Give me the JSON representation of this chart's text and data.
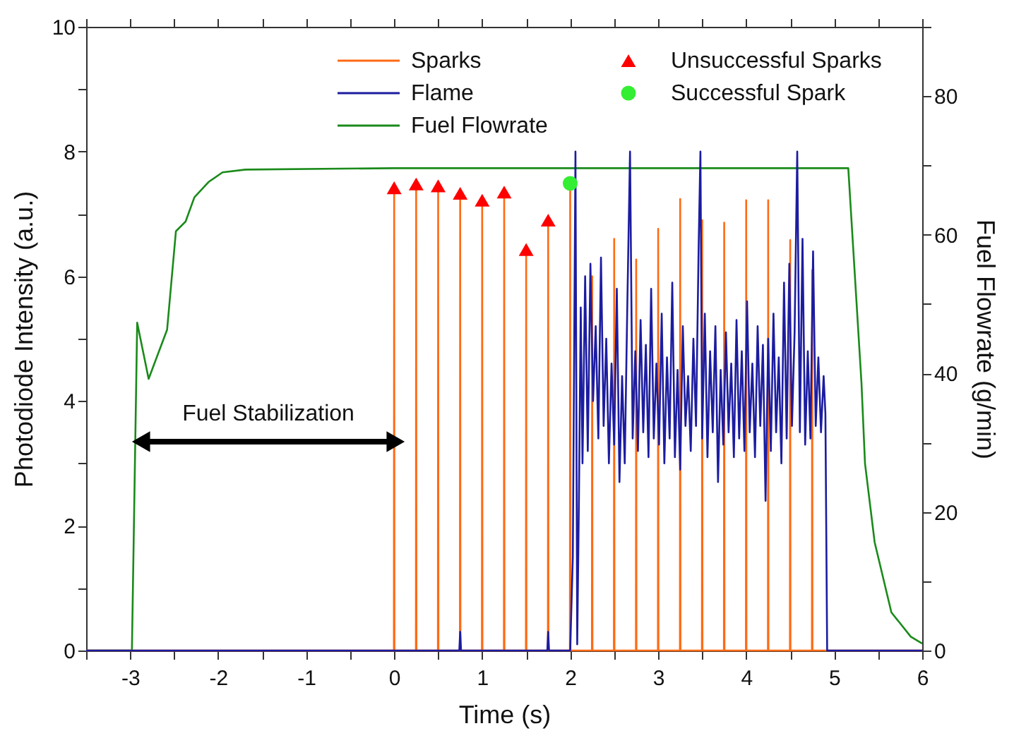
{
  "chart_data": {
    "type": "line",
    "xlabel": "Time (s)",
    "ylabel": "Photodiode Intensity (a.u.)",
    "y2label": "Fuel Flowrate (g/min)",
    "xlim": [
      -3.5,
      6
    ],
    "xticks": [
      {
        "value": -3.5,
        "label": null
      },
      -3,
      {
        "value": -2.5,
        "label": null
      },
      -2,
      {
        "value": -1.5,
        "label": null
      },
      -1,
      {
        "value": -0.5,
        "label": null
      },
      0,
      {
        "value": 0.5,
        "label": null
      },
      1,
      {
        "value": 1.5,
        "label": null
      },
      2,
      {
        "value": 2.5,
        "label": null
      },
      3,
      {
        "value": 3.5,
        "label": null
      },
      4,
      {
        "value": 4.5,
        "label": null
      },
      5,
      {
        "value": 5.5,
        "label": null
      },
      6
    ],
    "ylim": [
      0,
      10
    ],
    "yticks": [
      0,
      {
        "value": 1,
        "label": null
      },
      2,
      {
        "value": 3,
        "label": null
      },
      4,
      {
        "value": 5,
        "label": null
      },
      6,
      {
        "value": 7,
        "label": null
      },
      8,
      {
        "value": 9,
        "label": null
      },
      10
    ],
    "y2lim": [
      0,
      90
    ],
    "y2ticks": [
      0,
      {
        "value": 10,
        "label": null
      },
      20,
      {
        "value": 30,
        "label": null
      },
      40,
      {
        "value": 50,
        "label": null
      },
      60,
      {
        "value": 70,
        "label": null
      },
      80,
      {
        "value": 90,
        "label": null
      }
    ],
    "legend": "top",
    "grid": false,
    "annotations": [
      "Fuel Stabilization"
    ],
    "series": [
      {
        "name": "Sparks",
        "color": "#ff6a14",
        "x": [
          -3.5,
          -0.003,
          0,
          0.003,
          0.247,
          0.25,
          0.253,
          0.497,
          0.5,
          0.503,
          0.747,
          0.75,
          0.753,
          0.997,
          1.0,
          1.003,
          1.247,
          1.25,
          1.253,
          1.497,
          1.5,
          1.503,
          1.747,
          1.75,
          1.753,
          1.997,
          2.0,
          2.003,
          2.247,
          2.25,
          2.253,
          2.497,
          2.5,
          2.503,
          2.747,
          2.75,
          2.753,
          2.997,
          3.0,
          3.003,
          3.247,
          3.25,
          3.253,
          3.497,
          3.5,
          3.503,
          3.747,
          3.75,
          3.753,
          3.997,
          4.0,
          4.003,
          4.247,
          4.25,
          4.253,
          4.497,
          4.5,
          4.503,
          4.747,
          4.75,
          4.753,
          6
        ],
        "values": [
          0,
          0,
          7.42,
          0,
          0,
          7.48,
          0,
          0,
          7.45,
          0,
          0,
          7.33,
          0,
          0,
          7.22,
          0,
          0,
          7.35,
          0,
          0,
          6.43,
          0,
          0,
          6.9,
          0,
          0,
          7.49,
          0,
          0,
          6.0,
          0,
          0,
          6.6,
          0,
          0,
          6.27,
          0,
          0,
          6.76,
          0,
          0,
          7.24,
          0,
          0,
          6.9,
          0,
          0,
          6.86,
          0,
          0,
          7.22,
          0,
          0,
          7.22,
          0,
          0,
          6.58,
          0,
          0,
          6.1,
          0,
          0
        ]
      },
      {
        "name": "Flame",
        "color": "#1c1ca0",
        "x": [
          -3.5,
          0.74,
          0.75,
          0.76,
          1.74,
          1.75,
          1.76,
          2.0,
          2.03,
          2.06,
          2.08,
          2.1,
          2.12,
          2.14,
          2.17,
          2.2,
          2.23,
          2.26,
          2.29,
          2.32,
          2.35,
          2.38,
          2.41,
          2.44,
          2.47,
          2.5,
          2.53,
          2.56,
          2.59,
          2.62,
          2.65,
          2.68,
          2.71,
          2.74,
          2.77,
          2.8,
          2.83,
          2.86,
          2.89,
          2.92,
          2.95,
          2.98,
          3.01,
          3.04,
          3.07,
          3.1,
          3.13,
          3.16,
          3.19,
          3.22,
          3.25,
          3.28,
          3.31,
          3.34,
          3.37,
          3.4,
          3.43,
          3.46,
          3.48,
          3.5,
          3.53,
          3.56,
          3.59,
          3.62,
          3.65,
          3.68,
          3.71,
          3.74,
          3.77,
          3.8,
          3.83,
          3.86,
          3.89,
          3.92,
          3.95,
          3.98,
          4.01,
          4.04,
          4.07,
          4.1,
          4.13,
          4.16,
          4.19,
          4.22,
          4.25,
          4.28,
          4.31,
          4.34,
          4.37,
          4.4,
          4.43,
          4.46,
          4.49,
          4.52,
          4.55,
          4.58,
          4.61,
          4.64,
          4.67,
          4.7,
          4.73,
          4.76,
          4.79,
          4.82,
          4.85,
          4.88,
          4.9,
          4.92,
          6
        ],
        "values": [
          0,
          0,
          0.3,
          0,
          0,
          0.3,
          0,
          0,
          1.5,
          8.0,
          0.1,
          2.5,
          5.5,
          3.0,
          6.0,
          3.2,
          6.2,
          4.0,
          5.2,
          3.4,
          6.3,
          3.6,
          5.0,
          3.0,
          4.6,
          3.3,
          5.8,
          2.7,
          4.4,
          3.0,
          5.6,
          8.0,
          3.4,
          4.8,
          3.2,
          5.3,
          3.5,
          4.9,
          3.1,
          5.8,
          3.4,
          4.6,
          3.3,
          5.4,
          3.0,
          4.7,
          3.4,
          5.9,
          3.1,
          4.5,
          2.9,
          5.2,
          3.6,
          4.4,
          3.2,
          5.0,
          3.6,
          6.5,
          8.0,
          3.4,
          5.4,
          3.1,
          4.8,
          3.5,
          5.2,
          2.7,
          4.5,
          3.3,
          5.1,
          3.5,
          4.6,
          3.1,
          5.3,
          3.4,
          4.8,
          3.2,
          5.6,
          3.5,
          4.6,
          3.1,
          5.2,
          3.6,
          4.9,
          2.4,
          5.0,
          3.2,
          5.4,
          3.5,
          4.7,
          3.0,
          5.9,
          3.4,
          6.2,
          3.6,
          5.1,
          8.0,
          3.5,
          6.6,
          3.3,
          4.8,
          3.4,
          6.4,
          3.6,
          4.7,
          3.5,
          4.4,
          3.8,
          0,
          0
        ]
      },
      {
        "name": "Fuel Flowrate",
        "axis": "y2",
        "color": "#1a8a1a",
        "x": [
          -3.5,
          -2.98,
          -2.92,
          -2.79,
          -2.58,
          -2.48,
          -2.37,
          -2.27,
          -2.11,
          -1.95,
          -1.69,
          0,
          5.16,
          5.31,
          5.35,
          5.46,
          5.65,
          5.87,
          6
        ],
        "values": [
          0,
          0,
          47.3,
          39.2,
          46.3,
          60.5,
          61.9,
          65.4,
          67.6,
          69.0,
          69.4,
          69.6,
          69.6,
          38.6,
          27,
          15.6,
          5.5,
          2.0,
          1.0
        ]
      },
      {
        "name": "Unsuccessful Sparks",
        "type": "scatter",
        "marker": "triangle",
        "color": "#ff0000",
        "x": [
          0,
          0.25,
          0.5,
          0.75,
          1.0,
          1.25,
          1.5,
          1.75
        ],
        "values": [
          7.42,
          7.48,
          7.45,
          7.33,
          7.22,
          7.35,
          6.43,
          6.9
        ]
      },
      {
        "name": "Successful Spark",
        "type": "scatter",
        "marker": "circle",
        "color": "#33ee33",
        "x": [
          2.0
        ],
        "values": [
          7.49
        ]
      }
    ]
  }
}
